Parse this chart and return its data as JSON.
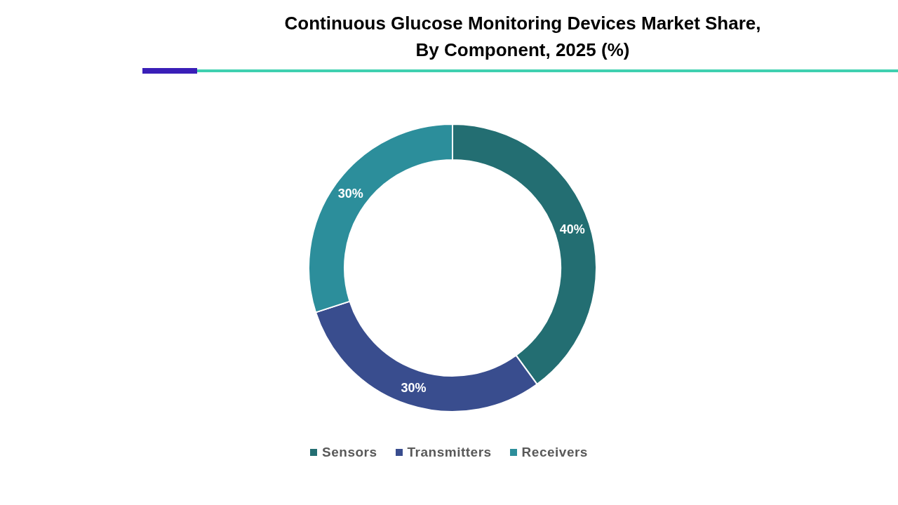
{
  "chart_data": {
    "type": "donut",
    "title": "Continuous Glucose Monitoring Devices Market Share,\nBy Component, 2025 (%)",
    "categories": [
      "Sensors",
      "Transmitters",
      "Receivers"
    ],
    "values": [
      40,
      30,
      30
    ],
    "colors": [
      "#236e72",
      "#394d8e",
      "#2c8e9b"
    ],
    "value_labels": [
      "40%",
      "30%",
      "30%"
    ],
    "legend": "bottom"
  }
}
